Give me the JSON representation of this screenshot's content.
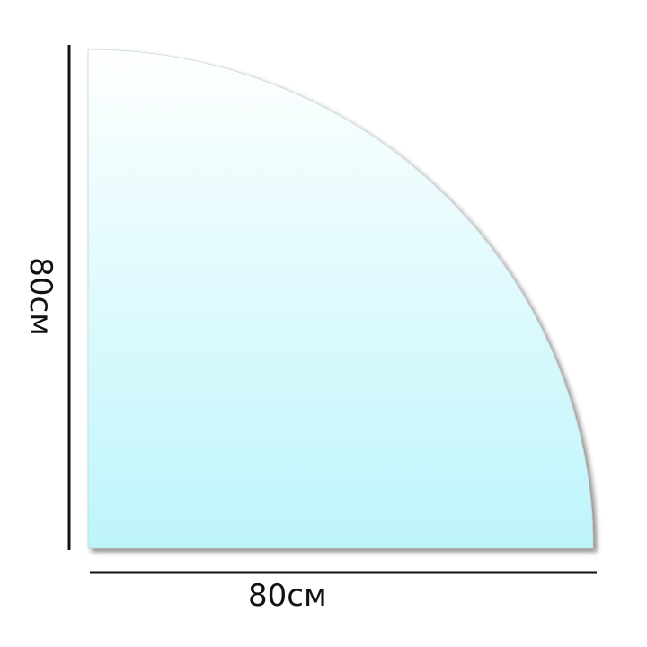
{
  "shape": "quarter-circle glass plate",
  "colors": {
    "fill_top": "#ffffff",
    "fill_bottom": "#bdf5fb",
    "dimension_line": "#111111"
  },
  "dimensions": {
    "width_label": "80см",
    "height_label": "80см"
  }
}
